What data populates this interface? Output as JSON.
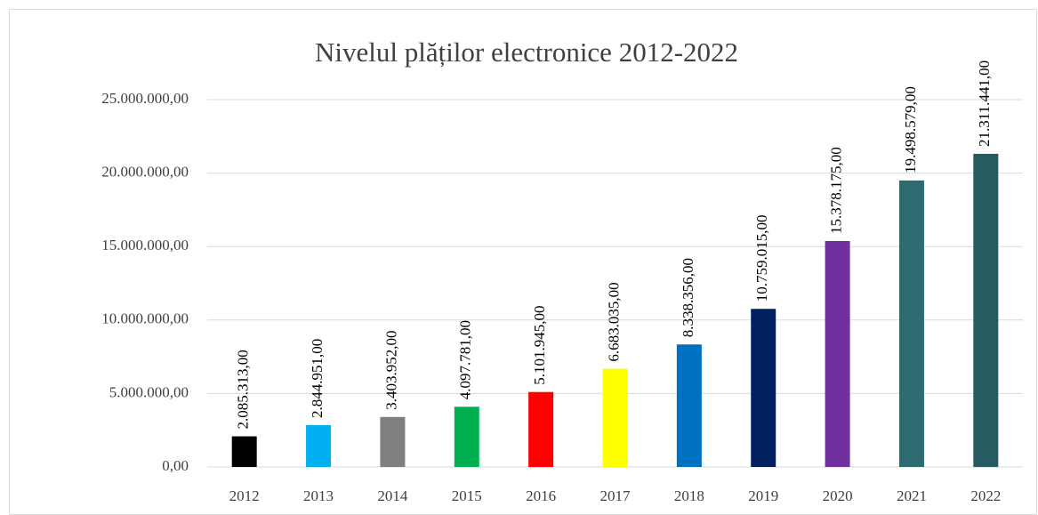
{
  "chart_data": {
    "type": "bar",
    "title": "Nivelul plăților electronice 2012-2022",
    "categories": [
      "2012",
      "2013",
      "2014",
      "2015",
      "2016",
      "2017",
      "2018",
      "2019",
      "2020",
      "2021",
      "2022"
    ],
    "values": [
      2085313,
      2844951,
      3403952,
      4097781,
      5101945,
      6683035,
      8338356,
      10759015,
      15378175,
      19498579,
      21311441
    ],
    "value_labels": [
      "2.085.313,00",
      "2.844.951,00",
      "3.403.952,00",
      "4.097.781,00",
      "5.101.945,00",
      "6.683.035,00",
      "8.338.356,00",
      "10.759.015,00",
      "15.378.175,00",
      "19.498.579,00",
      "21.311.441,00"
    ],
    "colors": [
      "#000000",
      "#00b0f0",
      "#7f7f7f",
      "#00b050",
      "#ff0000",
      "#ffff00",
      "#0070c0",
      "#002060",
      "#7030a0",
      "#2c6b70",
      "#255c61"
    ],
    "ylim": [
      0,
      25000000
    ],
    "yticks": [
      {
        "value": 0,
        "label": "0,00"
      },
      {
        "value": 5000000,
        "label": "5.000.000,00"
      },
      {
        "value": 10000000,
        "label": "10.000.000,00"
      },
      {
        "value": 15000000,
        "label": "15.000.000,00"
      },
      {
        "value": 20000000,
        "label": "20.000.000,00"
      },
      {
        "value": 25000000,
        "label": "25.000.000,00"
      }
    ],
    "grid": true
  }
}
